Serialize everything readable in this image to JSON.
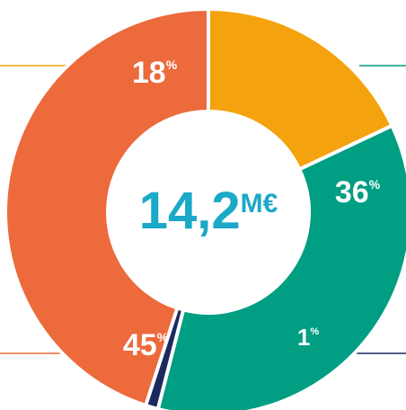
{
  "chart_data": {
    "type": "pie",
    "variant": "donut",
    "center_value": "14,2",
    "center_unit": "M€",
    "percent_symbol": "%",
    "slices": [
      {
        "label": "18",
        "value": 18,
        "color": "#F4A30F"
      },
      {
        "label": "36",
        "value": 36,
        "color": "#009E82"
      },
      {
        "label": "1",
        "value": 1,
        "color": "#1B2A5E"
      },
      {
        "label": "45",
        "value": 45,
        "color": "#EC6A3C"
      }
    ],
    "legend": "none",
    "colors": {
      "center_text": "#1AA9C7",
      "leader_line_yellow": "#F4A30F",
      "leader_line_green": "#009E82",
      "leader_line_navy": "#1B2A5E",
      "leader_line_orange": "#EC6A3C",
      "separator": "#ffffff"
    }
  }
}
